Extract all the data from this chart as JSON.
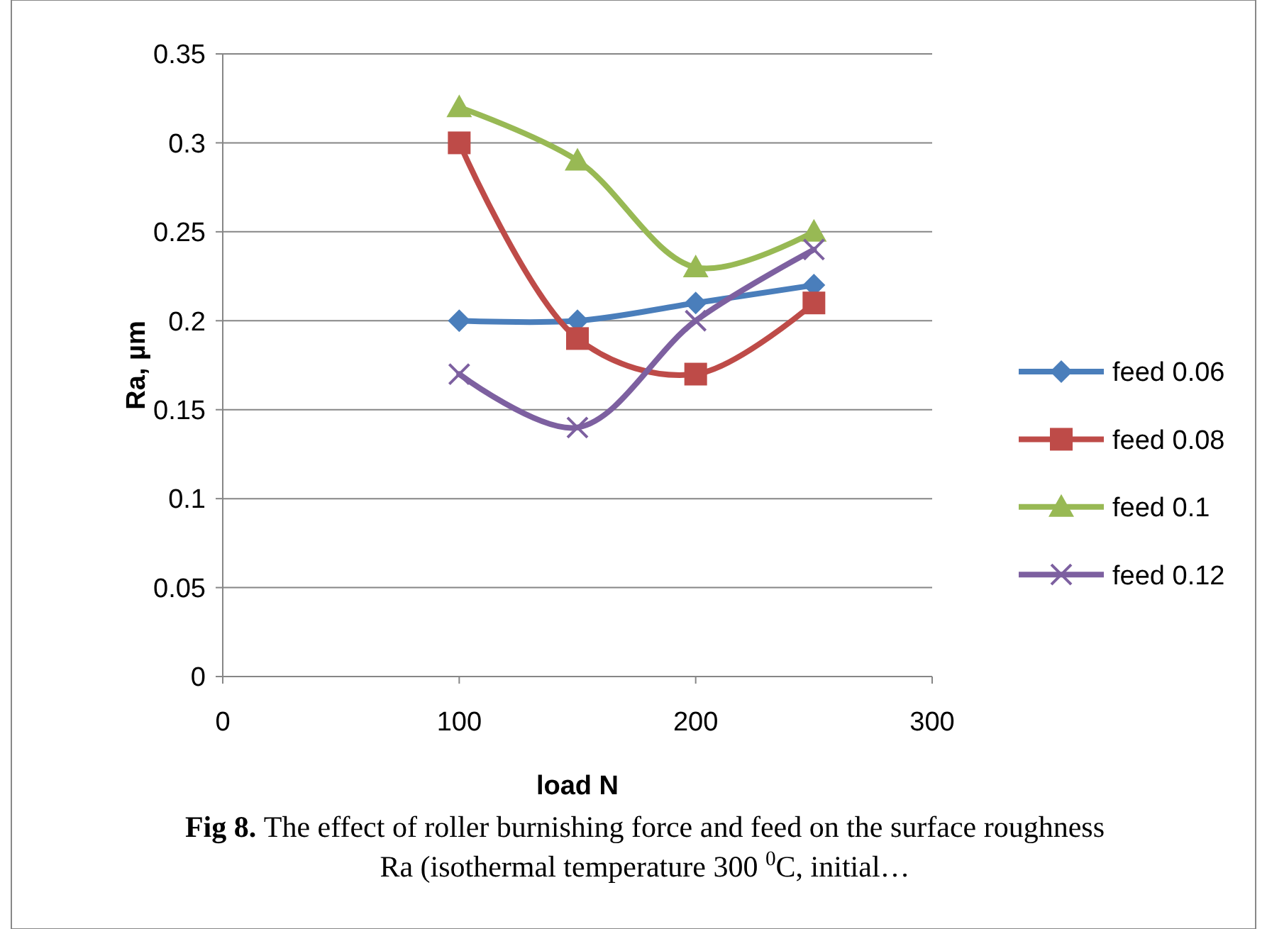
{
  "chart_data": {
    "type": "line",
    "xlabel": "load N",
    "ylabel": "Ra, µm",
    "x": [
      100,
      150,
      200,
      250
    ],
    "series": [
      {
        "name": "feed 0.06",
        "color": "#4a7ebb",
        "marker": "diamond",
        "values": [
          0.2,
          0.2,
          0.21,
          0.22
        ]
      },
      {
        "name": "feed 0.08",
        "color": "#be4b48",
        "marker": "square",
        "values": [
          0.3,
          0.19,
          0.17,
          0.21
        ]
      },
      {
        "name": "feed 0.1",
        "color": "#98b954",
        "marker": "triangle",
        "values": [
          0.32,
          0.29,
          0.23,
          0.25
        ]
      },
      {
        "name": "feed 0.12",
        "color": "#7d60a0",
        "marker": "cross",
        "values": [
          0.17,
          0.14,
          0.2,
          0.24
        ]
      }
    ],
    "xlim": [
      0,
      300
    ],
    "xticks": [
      0,
      100,
      200,
      300
    ],
    "ylim": [
      0,
      0.35
    ],
    "yticks": [
      0,
      0.05,
      0.1,
      0.15,
      0.2,
      0.25,
      0.3,
      0.35
    ],
    "grid": "y",
    "legend": "right",
    "line_style": "solid",
    "annotations": [
      "Fig 8.",
      "The effect of roller burnishing force and feed on the surface roughness Ra (isothermal temperature 300 $^{0}$C, initial…"
    ]
  }
}
